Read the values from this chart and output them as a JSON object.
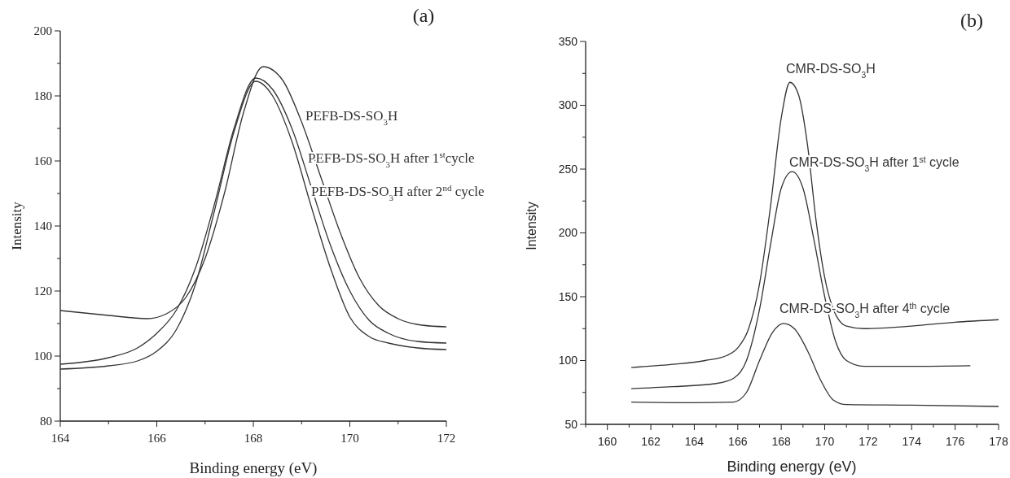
{
  "chart_data": [
    {
      "type": "line",
      "title": "(a)",
      "xlabel": "Binding energy (eV)",
      "ylabel": "Intensity",
      "xlim": [
        164,
        172
      ],
      "ylim": [
        80,
        200
      ],
      "xticks": [
        164,
        {
          "value": 165,
          "label": null
        },
        166,
        {
          "value": 167,
          "label": null
        },
        168,
        {
          "value": 169,
          "label": null
        },
        170,
        {
          "value": 171,
          "label": null
        },
        172
      ],
      "yticks": [
        80,
        {
          "value": 90,
          "label": null
        },
        100,
        {
          "value": 110,
          "label": null
        },
        120,
        {
          "value": 130,
          "label": null
        },
        140,
        {
          "value": 150,
          "label": null
        },
        160,
        {
          "value": 170,
          "label": null
        },
        180,
        {
          "value": 190,
          "label": null
        },
        200
      ],
      "grid": false,
      "marker": "none",
      "line_style": "solid",
      "series": [
        {
          "name": "PEFB-DS-SO$_{3}$H",
          "color": "#333333",
          "x": [
            164,
            165,
            165.8,
            166.2,
            166.6,
            167,
            167.4,
            167.8,
            168.2,
            168.6,
            169,
            169.4,
            169.8,
            170.2,
            170.6,
            171,
            171.5,
            172
          ],
          "values": [
            114,
            112.5,
            111.5,
            113,
            118,
            130,
            150,
            175,
            189,
            185,
            172,
            155,
            138,
            124,
            115.5,
            111.5,
            109.5,
            109
          ]
        },
        {
          "name": "PEFB-DS-SO$_{3}$H  after 1$^{st}$cycle",
          "color": "#333333",
          "x": [
            164,
            165,
            165.6,
            166,
            166.4,
            166.8,
            167.2,
            167.6,
            168.05,
            168.4,
            168.8,
            169.2,
            169.6,
            170,
            170.4,
            170.8,
            171.4,
            172
          ],
          "values": [
            97.5,
            99.5,
            102.5,
            107,
            114,
            127,
            147,
            170,
            185.5,
            182,
            170,
            152,
            134,
            120,
            111,
            107,
            104.5,
            104
          ]
        },
        {
          "name": "PEFB-DS-SO$_{3}$H  after 2$^{nd}$ cycle",
          "color": "#333333",
          "x": [
            164,
            165,
            165.6,
            166,
            166.4,
            166.8,
            167.2,
            167.6,
            168.05,
            168.4,
            168.8,
            169.2,
            169.6,
            170,
            170.4,
            170.8,
            171.4,
            172
          ],
          "values": [
            96,
            97,
            98.5,
            101.5,
            108,
            122,
            145,
            169,
            184.5,
            180,
            166,
            146,
            127,
            112,
            106,
            104,
            102.5,
            102
          ]
        }
      ]
    },
    {
      "type": "line",
      "title": "(b)",
      "xlabel": "Binding energy (eV)",
      "ylabel": "Intensity",
      "xlim": [
        159,
        178
      ],
      "ylim": [
        50,
        350
      ],
      "xticks": [
        {
          "value": 159,
          "label": null
        },
        160,
        {
          "value": 161,
          "label": null
        },
        162,
        {
          "value": 163,
          "label": null
        },
        164,
        {
          "value": 165,
          "label": null
        },
        166,
        {
          "value": 167,
          "label": null
        },
        168,
        {
          "value": 169,
          "label": null
        },
        170,
        {
          "value": 171,
          "label": null
        },
        172,
        {
          "value": 173,
          "label": null
        },
        174,
        {
          "value": 175,
          "label": null
        },
        176,
        {
          "value": 177,
          "label": null
        },
        178
      ],
      "yticks": [
        50,
        {
          "value": 75,
          "label": null
        },
        100,
        {
          "value": 125,
          "label": null
        },
        150,
        {
          "value": 175,
          "label": null
        },
        200,
        {
          "value": 225,
          "label": null
        },
        250,
        {
          "value": 275,
          "label": null
        },
        300,
        {
          "value": 325,
          "label": null
        },
        350
      ],
      "grid": false,
      "marker": "none",
      "line_style": "solid",
      "series": [
        {
          "name": "CMR-DS-SO$_{3}$H",
          "color": "#333333",
          "x": [
            161.1,
            163,
            164.5,
            165.5,
            166,
            166.5,
            167,
            167.5,
            168,
            168.4,
            168.8,
            169.2,
            169.6,
            170,
            170.4,
            171,
            171.8,
            174,
            176,
            178
          ],
          "values": [
            94.5,
            97,
            100,
            104,
            110,
            125,
            160,
            220,
            290,
            318,
            308,
            270,
            210,
            165,
            140,
            127,
            125,
            127,
            130,
            132
          ]
        },
        {
          "name": "CMR-DS-SO$_{3}$H after 1$^{st}$ cycle",
          "color": "#333333",
          "x": [
            161.1,
            163,
            165,
            165.8,
            166.4,
            167,
            167.5,
            168,
            168.5,
            169,
            169.5,
            170,
            170.5,
            171,
            171.8,
            174,
            176.7
          ],
          "values": [
            78,
            79.5,
            82,
            86,
            100,
            140,
            190,
            235,
            248,
            235,
            195,
            150,
            115,
            100,
            95.5,
            95.5,
            96
          ]
        },
        {
          "name": "CMR-DS-SO$_{3}$H after 4$^{th}$  cycle",
          "color": "#333333",
          "x": [
            161.1,
            164,
            165.8,
            166.4,
            167,
            167.6,
            168.1,
            168.6,
            169.2,
            169.8,
            170.4,
            171,
            174,
            178
          ],
          "values": [
            67.5,
            67,
            67.5,
            75,
            100,
            122,
            129,
            125,
            108,
            85,
            69,
            65.5,
            65,
            64
          ]
        }
      ]
    }
  ]
}
